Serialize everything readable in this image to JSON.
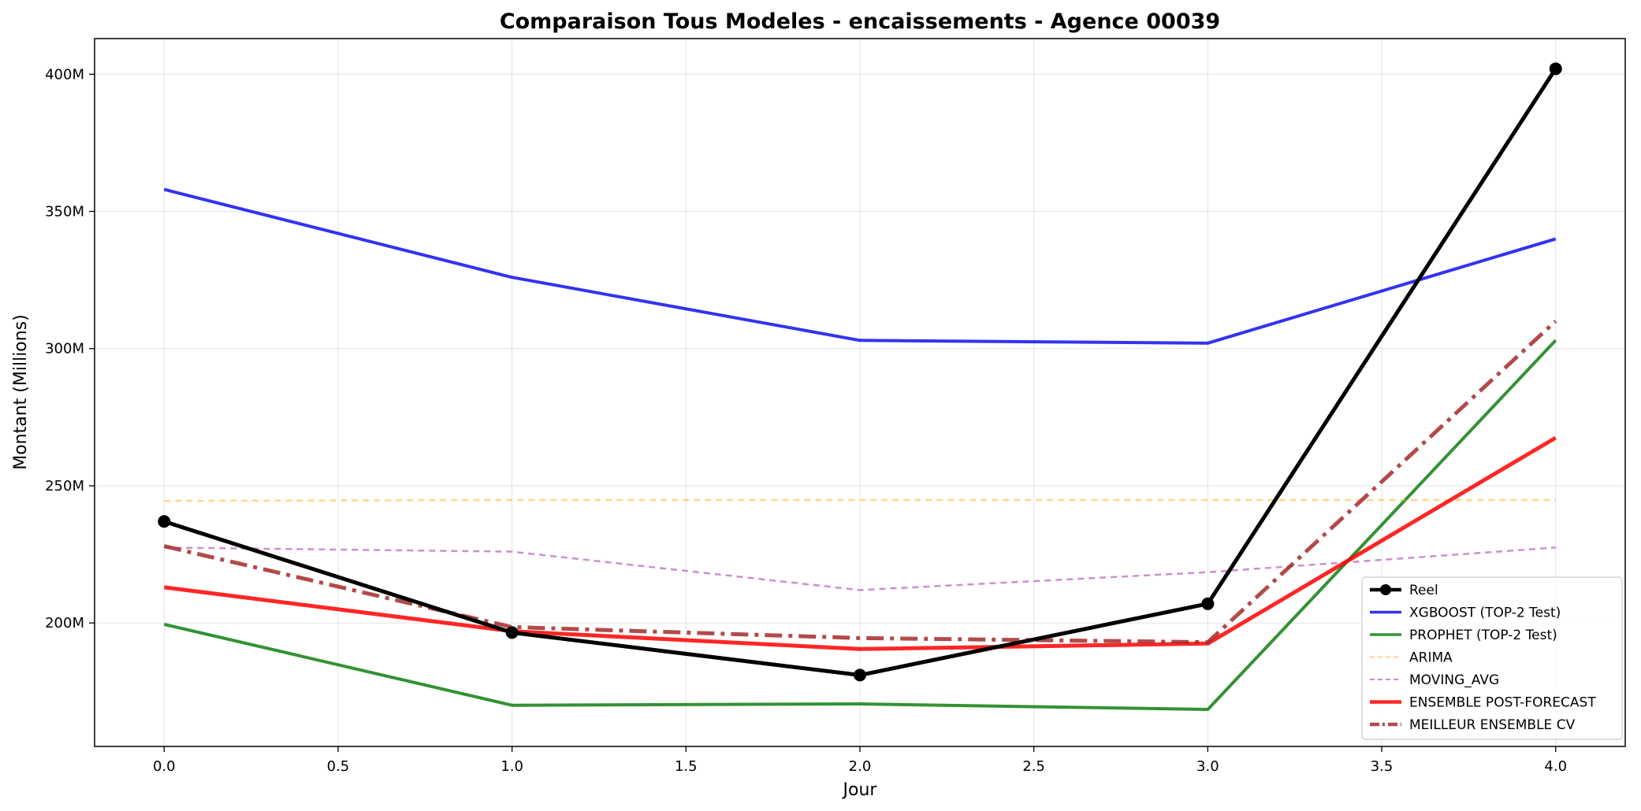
{
  "chart_data": {
    "type": "line",
    "title": "Comparaison Tous Modeles - encaissements - Agence 00039",
    "xlabel": "Jour",
    "ylabel": "Montant (Millions)",
    "xlim": [
      -0.2,
      4.2
    ],
    "ylim": [
      155,
      413
    ],
    "x_ticks": [
      0.0,
      0.5,
      1.0,
      1.5,
      2.0,
      2.5,
      3.0,
      3.5,
      4.0
    ],
    "x_tick_labels": [
      "0.0",
      "0.5",
      "1.0",
      "1.5",
      "2.0",
      "2.5",
      "3.0",
      "3.5",
      "4.0"
    ],
    "y_ticks": [
      200,
      250,
      300,
      350,
      400
    ],
    "y_tick_labels": [
      "200M",
      "250M",
      "300M",
      "350M",
      "400M"
    ],
    "grid": true,
    "legend_position": "lower-right",
    "x": [
      0,
      1,
      2,
      3,
      4
    ],
    "series": [
      {
        "name": "Reel",
        "values": [
          237,
          196.5,
          181,
          207,
          402
        ],
        "color": "#000000",
        "width": 5,
        "dash": "",
        "marker": true,
        "opacity": 1
      },
      {
        "name": "XGBOOST (TOP-2 Test)",
        "values": [
          358,
          326,
          303,
          302,
          340
        ],
        "color": "#0000ee",
        "width": 4,
        "dash": "",
        "marker": false,
        "opacity": 0.8
      },
      {
        "name": "PROPHET (TOP-2 Test)",
        "values": [
          199.5,
          170,
          170.5,
          168.5,
          303
        ],
        "color": "#007700",
        "width": 4,
        "dash": "",
        "marker": false,
        "opacity": 0.8
      },
      {
        "name": "ARIMA",
        "values": [
          244.5,
          244.8,
          244.8,
          244.8,
          244.8
        ],
        "color": "#ffa500",
        "width": 2.5,
        "dash": "8,6",
        "marker": false,
        "opacity": 0.45
      },
      {
        "name": "MOVING_AVG",
        "values": [
          227.5,
          226,
          212,
          218.5,
          227.5
        ],
        "color": "#aa44aa",
        "width": 2.5,
        "dash": "8,6",
        "marker": false,
        "opacity": 0.6
      },
      {
        "name": "ENSEMBLE POST-FORECAST",
        "values": [
          213,
          197,
          190.5,
          192.5,
          267.5
        ],
        "color": "#ff0000",
        "width": 5,
        "dash": "",
        "marker": false,
        "opacity": 0.85
      },
      {
        "name": "MEILLEUR ENSEMBLE CV",
        "values": [
          228,
          198.5,
          194.5,
          193,
          310
        ],
        "color": "#a52a2a",
        "width": 5,
        "dash": "22,8,5,8",
        "marker": false,
        "opacity": 0.85
      }
    ]
  }
}
